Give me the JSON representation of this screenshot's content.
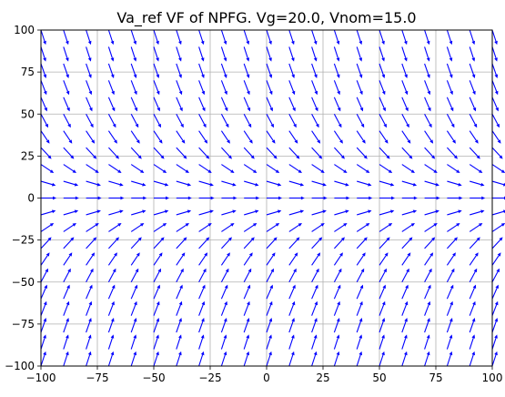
{
  "chart_data": {
    "type": "quiver",
    "title": "Va_ref VF of NPFG. Vg=20.0, Vnom=15.0",
    "xlabel": "",
    "ylabel": "",
    "xlim": [
      -100,
      100
    ],
    "ylim": [
      -100,
      100
    ],
    "x_ticks": [
      -100,
      -75,
      -50,
      -25,
      0,
      25,
      50,
      75,
      100
    ],
    "y_ticks": [
      -100,
      -75,
      -50,
      -25,
      0,
      25,
      50,
      75,
      100
    ],
    "x_tick_labels": [
      "−100",
      "−75",
      "−50",
      "−25",
      "0",
      "25",
      "50",
      "75",
      "100"
    ],
    "y_tick_labels": [
      "−100",
      "−75",
      "−50",
      "−25",
      "0",
      "25",
      "50",
      "75",
      "100"
    ],
    "grid": true,
    "arrow_color": "#0000ff",
    "x_grid": [
      -100,
      -90,
      -80,
      -70,
      -60,
      -50,
      -40,
      -30,
      -20,
      -10,
      0,
      10,
      20,
      30,
      40,
      50,
      60,
      70,
      80,
      90,
      100
    ],
    "y_grid": [
      100,
      90,
      80,
      70,
      60,
      50,
      40,
      30,
      20,
      10,
      0,
      -10,
      -20,
      -30,
      -40,
      -50,
      -60,
      -70,
      -80,
      -90,
      -100
    ],
    "vector_rows": [
      {
        "y": 100,
        "u": 0.31,
        "v": -0.95
      },
      {
        "y": 90,
        "u": 0.31,
        "v": -0.95
      },
      {
        "y": 80,
        "u": 0.33,
        "v": -0.94
      },
      {
        "y": 70,
        "u": 0.36,
        "v": -0.93
      },
      {
        "y": 60,
        "u": 0.4,
        "v": -0.92
      },
      {
        "y": 50,
        "u": 0.47,
        "v": -0.88
      },
      {
        "y": 40,
        "u": 0.56,
        "v": -0.83
      },
      {
        "y": 30,
        "u": 0.68,
        "v": -0.73
      },
      {
        "y": 20,
        "u": 0.83,
        "v": -0.55
      },
      {
        "y": 10,
        "u": 0.96,
        "v": -0.28
      },
      {
        "y": 0,
        "u": 1.0,
        "v": 0.0
      },
      {
        "y": -10,
        "u": 0.96,
        "v": 0.28
      },
      {
        "y": -20,
        "u": 0.83,
        "v": 0.55
      },
      {
        "y": -30,
        "u": 0.68,
        "v": 0.73
      },
      {
        "y": -40,
        "u": 0.56,
        "v": 0.83
      },
      {
        "y": -50,
        "u": 0.47,
        "v": 0.88
      },
      {
        "y": -60,
        "u": 0.4,
        "v": 0.92
      },
      {
        "y": -70,
        "u": 0.36,
        "v": 0.93
      },
      {
        "y": -80,
        "u": 0.33,
        "v": 0.94
      },
      {
        "y": -90,
        "u": 0.31,
        "v": 0.95
      },
      {
        "y": -100,
        "u": 0.31,
        "v": 0.95
      }
    ]
  }
}
